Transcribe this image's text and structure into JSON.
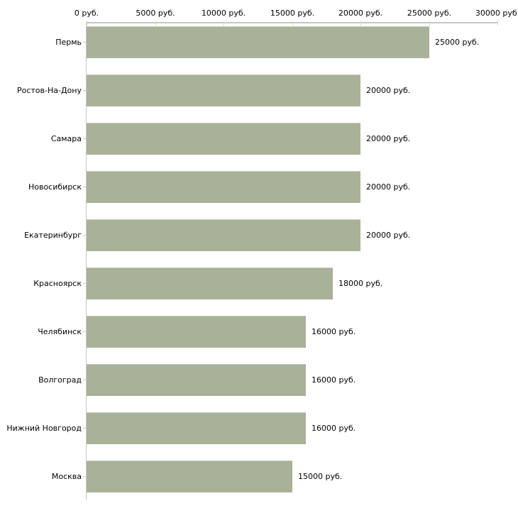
{
  "chart_data": {
    "type": "bar",
    "orientation": "horizontal",
    "title": "",
    "categories": [
      "Пермь",
      "Ростов-На-Дону",
      "Самара",
      "Новосибирск",
      "Екатеринбург",
      "Красноярск",
      "Челябинск",
      "Волгоград",
      "Нижний Новгород",
      "Москва"
    ],
    "values": [
      25000,
      20000,
      20000,
      20000,
      20000,
      18000,
      16000,
      16000,
      16000,
      15000
    ],
    "value_labels": [
      "25000 руб.",
      "20000 руб.",
      "20000 руб.",
      "20000 руб.",
      "20000 руб.",
      "18000 руб.",
      "16000 руб.",
      "16000 руб.",
      "16000 руб.",
      "15000 руб."
    ],
    "x_tick_values": [
      0,
      5000,
      10000,
      15000,
      20000,
      25000,
      30000
    ],
    "x_tick_labels": [
      "0 руб.",
      "5000 руб.",
      "10000 руб.",
      "15000 руб.",
      "20000 руб.",
      "25000 руб.",
      "30000 руб."
    ],
    "xlim": [
      0,
      30000
    ],
    "unit": "руб.",
    "xlabel": "",
    "ylabel": "",
    "grid": "off",
    "legend_position": "none"
  },
  "colors": {
    "bar_fill": "#aab199",
    "bar_border_top": "#c7ccb5",
    "axis_line": "#c6c6c6",
    "x_tick": "#d8dbbc",
    "y_tick": "#c9c9c0",
    "text": "#000000",
    "background": "#ffffff"
  }
}
